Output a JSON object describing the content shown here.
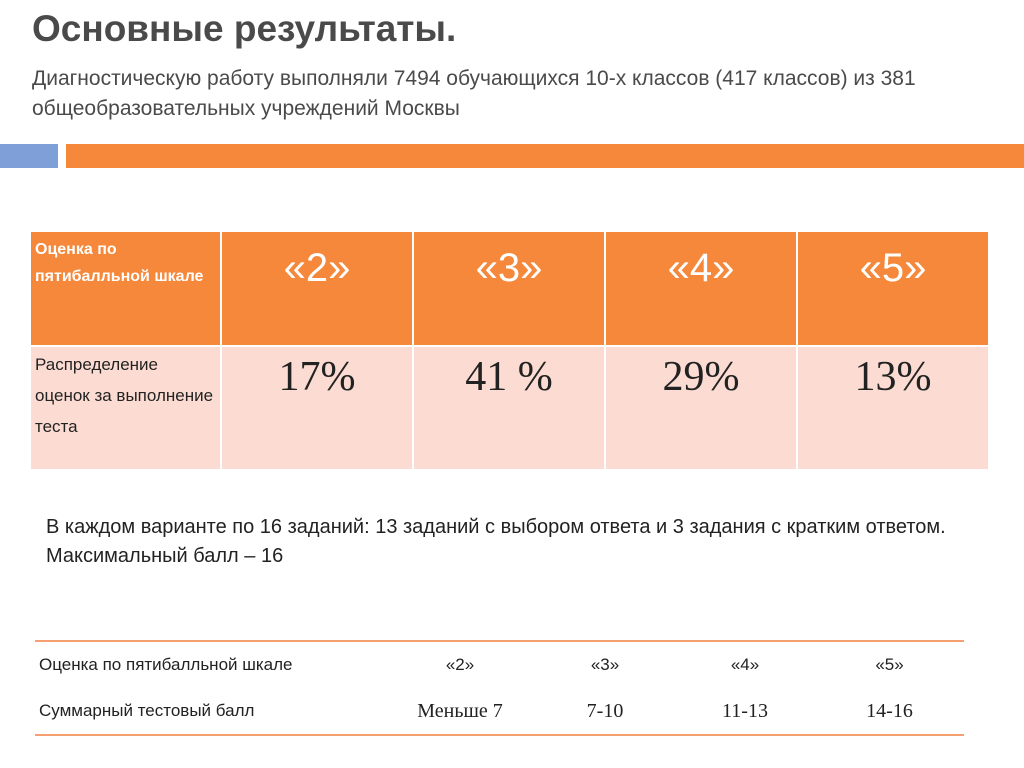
{
  "title": "Основные результаты.",
  "subtitle": "Диагностическую работу  выполняли 7494 обучающихся 10-х классов (417 классов) из 381 общеобразовательных учреждений Москвы",
  "results_table": {
    "header_label": "Оценка  по пятибалльной шкале",
    "grades": [
      "«2»",
      "«3»",
      "«4»",
      "«5»"
    ],
    "row_label": "Распределение оценок за выполнение теста",
    "percents": [
      "17%",
      "41 %",
      "29%",
      "13%"
    ]
  },
  "note": {
    "line1": "В каждом варианте по 16 заданий: 13 заданий с выбором ответа и 3 задания с кратким ответом.",
    "line2": "Максимальный балл – 16"
  },
  "score_table": {
    "row1_label": "Оценка по пятибалльной шкале",
    "grades": [
      "«2»",
      "«3»",
      "«4»",
      "«5»"
    ],
    "row2_label": "Суммарный тестовый  балл",
    "scores": [
      "Меньше  7",
      "7-10",
      "11-13",
      "14-16"
    ]
  },
  "colors": {
    "accent_orange": "#f5883a",
    "accent_blue": "#7f9fd9",
    "row_pink": "#fcdcd2",
    "title_gray": "#4a4a4a"
  }
}
